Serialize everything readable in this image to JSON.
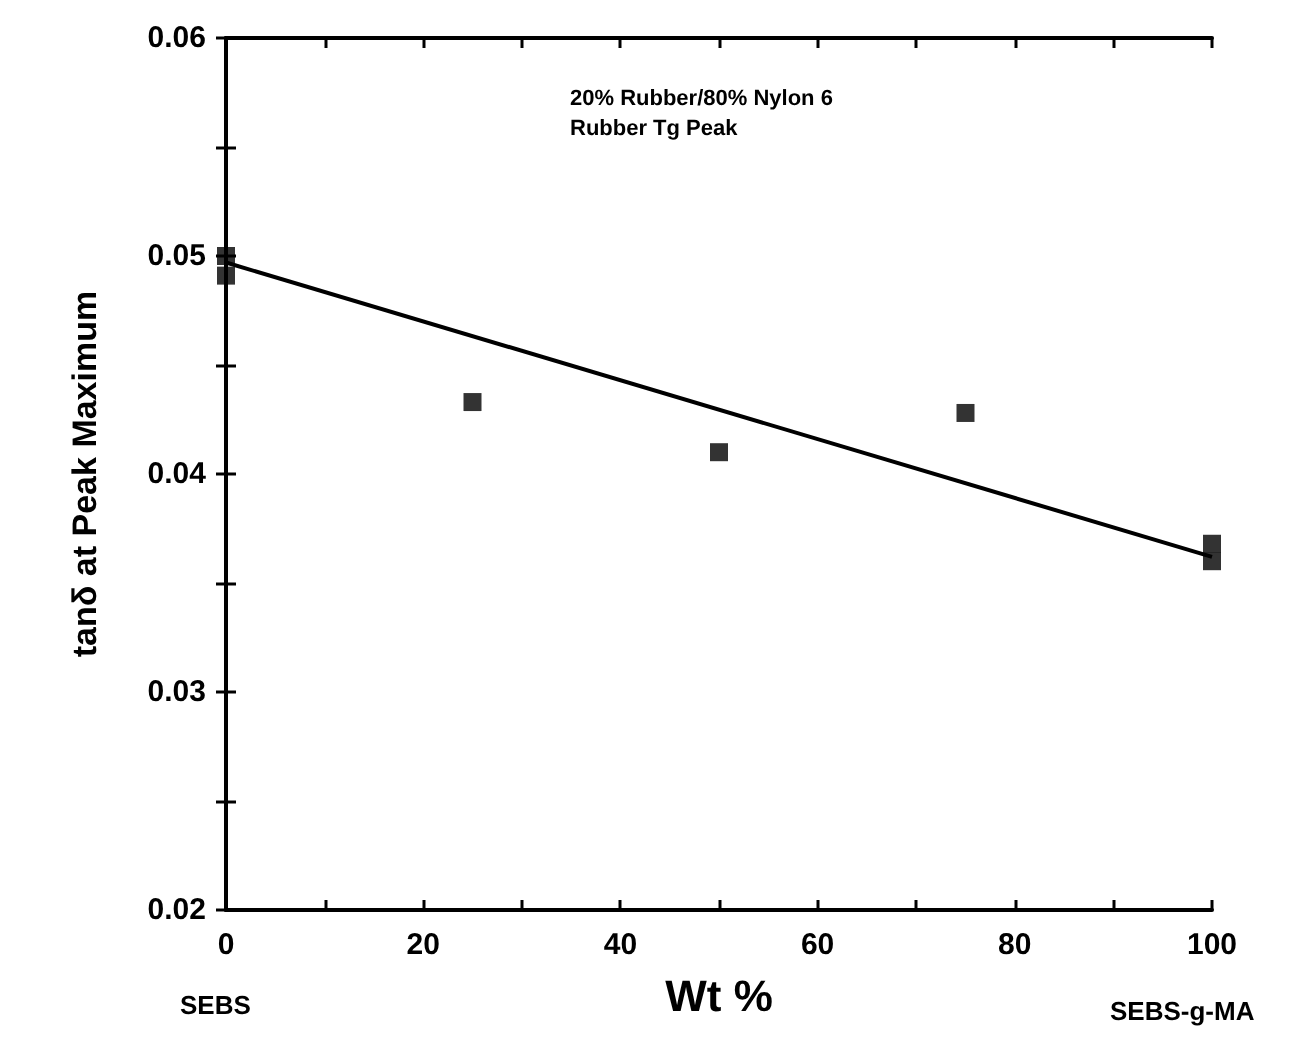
{
  "chart_data": {
    "type": "scatter",
    "xlabel": "Wt %",
    "ylabel": "tanδ at Peak Maximum",
    "annotations": [
      "20% Rubber/80% Nylon 6\nRubber Tg Peak",
      "SEBS",
      "SEBS-g-MA"
    ],
    "xlim": [
      0,
      100
    ],
    "ylim": [
      0.02,
      0.06
    ],
    "xticks": [
      0,
      {
        "value": 10,
        "label": null
      },
      20,
      {
        "value": 30,
        "label": null
      },
      40,
      {
        "value": 50,
        "label": null
      },
      60,
      {
        "value": 70,
        "label": null
      },
      80,
      {
        "value": 90,
        "label": null
      },
      100
    ],
    "yticks": [
      0.02,
      {
        "value": 0.025,
        "label": null
      },
      0.03,
      {
        "value": 0.035,
        "label": null
      },
      0.04,
      {
        "value": 0.045,
        "label": null
      },
      0.05,
      {
        "value": 0.055,
        "label": null
      },
      0.06
    ],
    "grid": false,
    "marker": "square",
    "series": [
      {
        "color": "#000000",
        "x": [
          0,
          0,
          25,
          50,
          75,
          100,
          100
        ],
        "values": [
          0.05,
          0.0491,
          0.0433,
          0.041,
          0.0428,
          0.0368,
          0.036
        ]
      },
      {
        "type": "line",
        "color": "#000000",
        "marker": "none",
        "line_style": "solid",
        "x": [
          0,
          100
        ],
        "values": [
          0.0497,
          0.0362
        ]
      }
    ]
  }
}
